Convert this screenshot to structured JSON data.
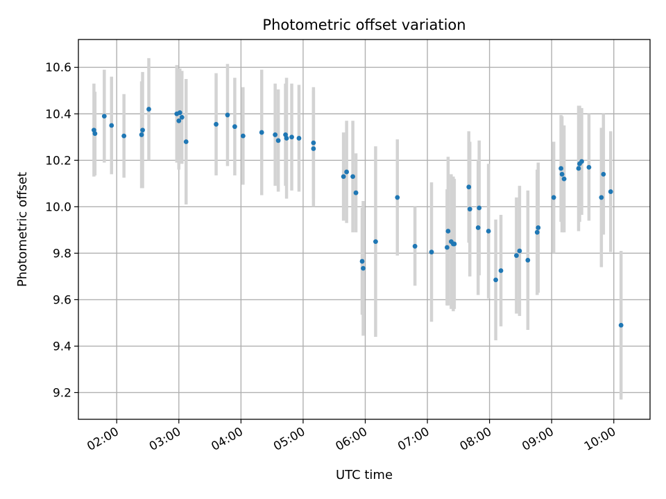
{
  "chart_data": {
    "type": "scatter",
    "title": "Photometric offset variation",
    "xlabel": "UTC time",
    "ylabel": "Photometric offset",
    "x_ticks": [
      "02:00",
      "03:00",
      "04:00",
      "05:00",
      "06:00",
      "07:00",
      "08:00",
      "09:00",
      "10:00"
    ],
    "y_ticks": [
      "9.2",
      "9.4",
      "9.6",
      "9.8",
      "10.0",
      "10.2",
      "10.4",
      "10.6"
    ],
    "x_range": [
      "01:23",
      "10:35"
    ],
    "ylim": [
      9.085,
      10.72
    ],
    "grid": true,
    "marker_color": "#1f77b4",
    "errorbar_color": "#d3d3d3",
    "series": [
      {
        "x": [
          "01:38",
          "01:39",
          "01:48",
          "01:55",
          "02:07",
          "02:24",
          "02:25",
          "02:31",
          "02:58",
          "03:00",
          "03:01",
          "03:03",
          "03:07",
          "03:36",
          "03:47",
          "03:54",
          "04:02",
          "04:20",
          "04:33",
          "04:36",
          "04:43",
          "04:44",
          "04:49",
          "04:56",
          "05:10",
          "05:10",
          "05:39",
          "05:42",
          "05:48",
          "05:51",
          "05:57",
          "05:58",
          "06:10",
          "06:31",
          "06:48",
          "07:04",
          "07:19",
          "07:20",
          "07:23",
          "07:25",
          "07:26",
          "07:40",
          "07:41",
          "07:49",
          "07:50",
          "07:59",
          "08:06",
          "08:11",
          "08:26",
          "08:29",
          "08:37",
          "08:46",
          "08:47",
          "09:02",
          "09:09",
          "09:10",
          "09:12",
          "09:26",
          "09:27",
          "09:29",
          "09:36",
          "09:48",
          "09:50",
          "09:57",
          "10:07"
        ],
        "y": [
          10.33,
          10.315,
          10.39,
          10.35,
          10.305,
          10.31,
          10.33,
          10.42,
          10.4,
          10.37,
          10.405,
          10.385,
          10.28,
          10.355,
          10.395,
          10.345,
          10.305,
          10.32,
          10.31,
          10.285,
          10.31,
          10.295,
          10.3,
          10.295,
          10.275,
          10.25,
          10.13,
          10.15,
          10.13,
          10.06,
          9.765,
          9.735,
          9.85,
          10.04,
          9.83,
          9.805,
          9.825,
          9.895,
          9.85,
          9.84,
          9.84,
          10.085,
          9.99,
          9.91,
          9.995,
          9.895,
          9.685,
          9.725,
          9.79,
          9.81,
          9.77,
          9.89,
          9.91,
          10.04,
          10.165,
          10.14,
          10.12,
          10.165,
          10.185,
          10.195,
          10.17,
          10.04,
          10.14,
          10.065,
          9.49
        ],
        "err": [
          0.2,
          0.18,
          0.2,
          0.21,
          0.18,
          0.23,
          0.25,
          0.22,
          0.21,
          0.21,
          0.19,
          0.2,
          0.27,
          0.22,
          0.22,
          0.21,
          0.21,
          0.27,
          0.22,
          0.22,
          0.22,
          0.26,
          0.23,
          0.23,
          0.24,
          0.25,
          0.19,
          0.22,
          0.24,
          0.17,
          0.23,
          0.29,
          0.41,
          0.25,
          0.17,
          0.3,
          0.25,
          0.32,
          0.29,
          0.29,
          0.28,
          0.24,
          0.29,
          0.29,
          0.29,
          0.29,
          0.26,
          0.24,
          0.25,
          0.28,
          0.3,
          0.27,
          0.28,
          0.24,
          0.23,
          0.25,
          0.23,
          0.27,
          0.25,
          0.23,
          0.23,
          0.3,
          0.26,
          0.26,
          0.32
        ]
      }
    ]
  }
}
